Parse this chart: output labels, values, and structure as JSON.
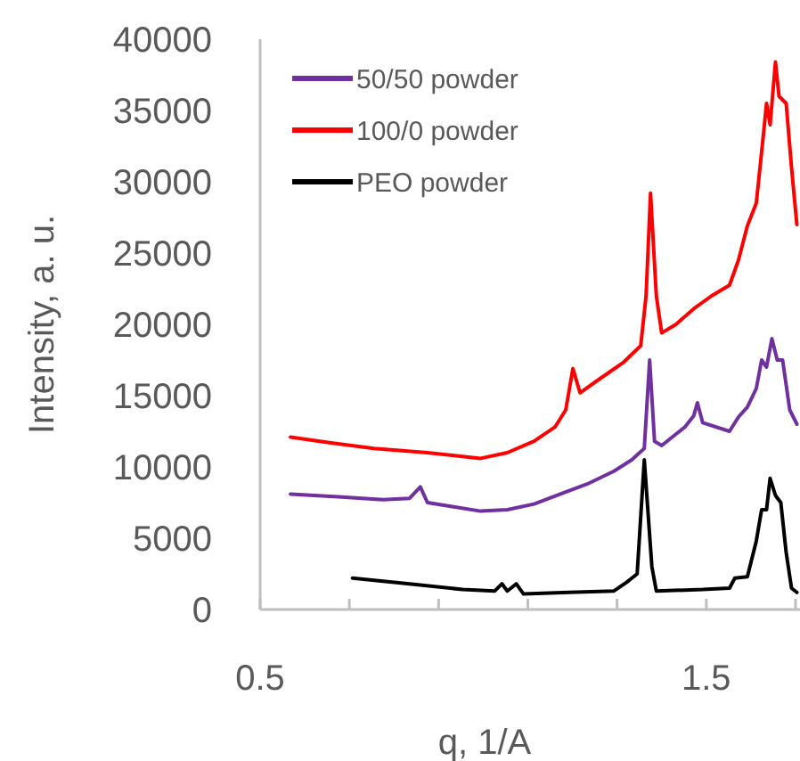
{
  "chart_data": {
    "type": "line",
    "xlabel": "q, 1/A",
    "ylabel": "Intensity, a. u.",
    "xlim": [
      0.5,
      1.71
    ],
    "ylim": [
      0,
      40000
    ],
    "xticks": [
      0.5,
      {
        "value": 0.7,
        "label": null
      },
      {
        "value": 0.9,
        "label": null
      },
      {
        "value": 1.1,
        "label": null
      },
      {
        "value": 1.3,
        "label": null
      },
      1.5,
      {
        "value": 1.7,
        "label": null
      }
    ],
    "yticks": [
      0,
      5000,
      10000,
      15000,
      20000,
      25000,
      30000,
      35000,
      40000
    ],
    "grid": false,
    "legend": "top left",
    "marker": "none",
    "line_style": "solid",
    "series": [
      {
        "name": "50/50 powder",
        "color": "#7030a0",
        "x": [
          0.568,
          0.675,
          0.775,
          0.835,
          0.859,
          0.875,
          0.934,
          0.994,
          1.054,
          1.114,
          1.173,
          1.233,
          1.293,
          1.333,
          1.361,
          1.373,
          1.384,
          1.4,
          1.452,
          1.472,
          1.48,
          1.492,
          1.552,
          1.572,
          1.592,
          1.612,
          1.624,
          1.635,
          1.647,
          1.659,
          1.671,
          1.687,
          1.703
        ],
        "values": [
          8100,
          7900,
          7700,
          7800,
          8600,
          7500,
          7200,
          6900,
          7000,
          7400,
          8100,
          8800,
          9700,
          10500,
          11300,
          17500,
          11800,
          11500,
          12800,
          13600,
          14500,
          13100,
          12500,
          13500,
          14200,
          15500,
          17500,
          17000,
          19000,
          17500,
          17500,
          14000,
          13000
        ]
      },
      {
        "name": "100/0 powder",
        "color": "#ff0000",
        "x": [
          0.568,
          0.655,
          0.755,
          0.875,
          0.994,
          1.054,
          1.114,
          1.161,
          1.185,
          1.201,
          1.217,
          1.253,
          1.313,
          1.353,
          1.365,
          1.375,
          1.388,
          1.4,
          1.432,
          1.472,
          1.512,
          1.552,
          1.572,
          1.592,
          1.612,
          1.627,
          1.635,
          1.643,
          1.655,
          1.663,
          1.679,
          1.691,
          1.703
        ],
        "values": [
          12100,
          11700,
          11300,
          11000,
          10600,
          11000,
          11800,
          12800,
          14000,
          16900,
          15200,
          16000,
          17300,
          18500,
          22000,
          29200,
          22000,
          19400,
          20000,
          21100,
          22000,
          22750,
          24500,
          26900,
          28500,
          33000,
          35500,
          34000,
          38400,
          36000,
          35500,
          31000,
          27000
        ]
      },
      {
        "name": "PEO powder",
        "color": "#000000",
        "x": [
          0.707,
          0.835,
          0.954,
          1.026,
          1.042,
          1.054,
          1.074,
          1.09,
          1.193,
          1.293,
          1.321,
          1.345,
          1.361,
          1.378,
          1.388,
          1.492,
          1.552,
          1.564,
          1.592,
          1.612,
          1.624,
          1.635,
          1.643,
          1.655,
          1.667,
          1.679,
          1.691,
          1.703
        ],
        "values": [
          2200,
          1800,
          1400,
          1300,
          1800,
          1300,
          1800,
          1100,
          1200,
          1300,
          1900,
          2500,
          10500,
          3000,
          1300,
          1400,
          1500,
          2200,
          2300,
          4800,
          7000,
          7000,
          9200,
          8000,
          7500,
          4000,
          1500,
          1200
        ]
      }
    ]
  }
}
